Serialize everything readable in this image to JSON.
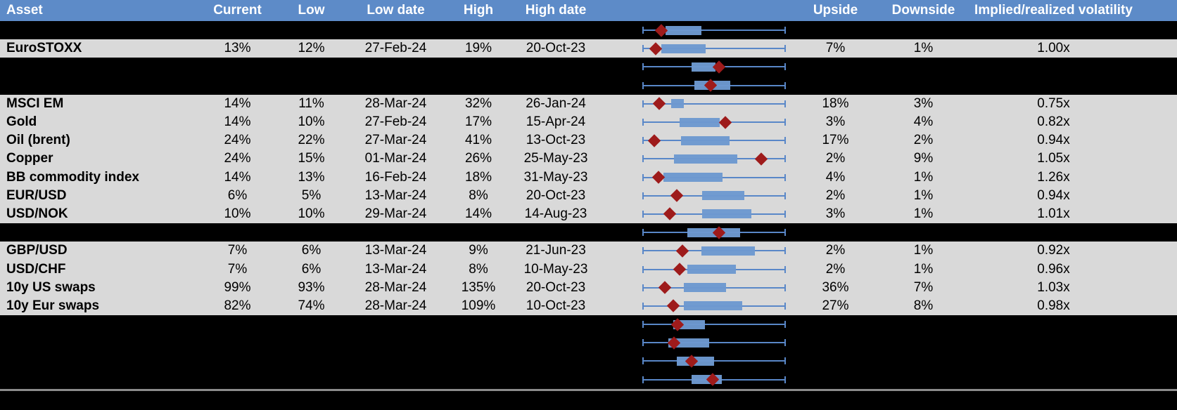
{
  "table": {
    "columns": [
      "Asset",
      "Current",
      "Low",
      "Low date",
      "High",
      "High date",
      "",
      "Upside",
      "Downside",
      "Implied/realized volatility"
    ],
    "rows": [
      {
        "hidden": true,
        "asset": "",
        "current": "",
        "low": "",
        "low_date": "",
        "high": "",
        "high_date": "",
        "upside": "",
        "downside": "",
        "vol": "",
        "plot": {
          "box_start": 16.2,
          "box_end": 41.2,
          "marker": 13.2
        }
      },
      {
        "hidden": false,
        "asset": "EuroSTOXX",
        "current": "13%",
        "low": "12%",
        "low_date": "27-Feb-24",
        "high": "19%",
        "high_date": "20-Oct-23",
        "upside": "7%",
        "downside": "1%",
        "vol": "1.00x",
        "plot": {
          "box_start": 13.2,
          "box_end": 44.1,
          "marker": 9.3
        }
      },
      {
        "hidden": true,
        "asset": "",
        "current": "",
        "low": "",
        "low_date": "",
        "high": "",
        "high_date": "",
        "upside": "",
        "downside": "",
        "vol": "",
        "plot": {
          "box_start": 34.3,
          "box_end": 51.0,
          "marker": 53.4
        }
      },
      {
        "hidden": true,
        "asset": "",
        "current": "",
        "low": "",
        "low_date": "",
        "high": "",
        "high_date": "",
        "upside": "",
        "downside": "",
        "vol": "",
        "plot": {
          "box_start": 36.3,
          "box_end": 61.3,
          "marker": 47.5
        }
      },
      {
        "hidden": false,
        "asset": "MSCI EM",
        "current": "14%",
        "low": "11%",
        "low_date": "28-Mar-24",
        "high": "32%",
        "high_date": "26-Jan-24",
        "upside": "18%",
        "downside": "3%",
        "vol": "0.75x",
        "plot": {
          "box_start": 20.1,
          "box_end": 28.9,
          "marker": 11.8
        }
      },
      {
        "hidden": false,
        "asset": "Gold",
        "current": "14%",
        "low": "10%",
        "low_date": "27-Feb-24",
        "high": "17%",
        "high_date": "15-Apr-24",
        "upside": "3%",
        "downside": "4%",
        "vol": "0.82x",
        "plot": {
          "box_start": 26.0,
          "box_end": 53.9,
          "marker": 57.8
        }
      },
      {
        "hidden": false,
        "asset": "Oil (brent)",
        "current": "24%",
        "low": "22%",
        "low_date": "27-Mar-24",
        "high": "41%",
        "high_date": "13-Oct-23",
        "upside": "17%",
        "downside": "2%",
        "vol": "0.94x",
        "plot": {
          "box_start": 27.0,
          "box_end": 60.8,
          "marker": 8.3
        }
      },
      {
        "hidden": false,
        "asset": "Copper",
        "current": "24%",
        "low": "15%",
        "low_date": "01-Mar-24",
        "high": "26%",
        "high_date": "25-May-23",
        "upside": "2%",
        "downside": "9%",
        "vol": "1.05x",
        "plot": {
          "box_start": 22.1,
          "box_end": 66.2,
          "marker": 82.8
        }
      },
      {
        "hidden": false,
        "asset": "BB commodity index",
        "current": "14%",
        "low": "13%",
        "low_date": "16-Feb-24",
        "high": "18%",
        "high_date": "31-May-23",
        "upside": "4%",
        "downside": "1%",
        "vol": "1.26x",
        "plot": {
          "box_start": 14.7,
          "box_end": 55.9,
          "marker": 11.3
        }
      },
      {
        "hidden": false,
        "asset": "EUR/USD",
        "current": "6%",
        "low": "5%",
        "low_date": "13-Mar-24",
        "high": "8%",
        "high_date": "20-Oct-23",
        "upside": "2%",
        "downside": "1%",
        "vol": "0.94x",
        "plot": {
          "box_start": 41.7,
          "box_end": 71.1,
          "marker": 24.0
        }
      },
      {
        "hidden": false,
        "asset": "USD/NOK",
        "current": "10%",
        "low": "10%",
        "low_date": "29-Mar-24",
        "high": "14%",
        "high_date": "14-Aug-23",
        "upside": "3%",
        "downside": "1%",
        "vol": "1.01x",
        "plot": {
          "box_start": 41.7,
          "box_end": 76.0,
          "marker": 19.1
        }
      },
      {
        "hidden": true,
        "asset": "",
        "current": "",
        "low": "",
        "low_date": "",
        "high": "",
        "high_date": "",
        "upside": "",
        "downside": "",
        "vol": "",
        "plot": {
          "box_start": 31.4,
          "box_end": 68.1,
          "marker": 53.4
        }
      },
      {
        "hidden": false,
        "asset": "GBP/USD",
        "current": "7%",
        "low": "6%",
        "low_date": "13-Mar-24",
        "high": "9%",
        "high_date": "21-Jun-23",
        "upside": "2%",
        "downside": "1%",
        "vol": "0.92x",
        "plot": {
          "box_start": 41.2,
          "box_end": 78.4,
          "marker": 27.9
        }
      },
      {
        "hidden": false,
        "asset": "USD/CHF",
        "current": "7%",
        "low": "6%",
        "low_date": "13-Mar-24",
        "high": "8%",
        "high_date": "10-May-23",
        "upside": "2%",
        "downside": "1%",
        "vol": "0.96x",
        "plot": {
          "box_start": 31.4,
          "box_end": 65.2,
          "marker": 26.0
        }
      },
      {
        "hidden": false,
        "asset": "10y US swaps",
        "current": "99%",
        "low": "93%",
        "low_date": "28-Mar-24",
        "high": "135%",
        "high_date": "20-Oct-23",
        "upside": "36%",
        "downside": "7%",
        "vol": "1.03x",
        "plot": {
          "box_start": 28.9,
          "box_end": 58.3,
          "marker": 15.7
        }
      },
      {
        "hidden": false,
        "asset": "10y Eur swaps",
        "current": "82%",
        "low": "74%",
        "low_date": "28-Mar-24",
        "high": "109%",
        "high_date": "10-Oct-23",
        "upside": "27%",
        "downside": "8%",
        "vol": "0.98x",
        "plot": {
          "box_start": 28.9,
          "box_end": 69.6,
          "marker": 21.6
        }
      },
      {
        "hidden": true,
        "asset": "",
        "current": "",
        "low": "",
        "low_date": "",
        "high": "",
        "high_date": "",
        "upside": "",
        "downside": "",
        "vol": "",
        "plot": {
          "box_start": 21.6,
          "box_end": 43.6,
          "marker": 24.5
        }
      },
      {
        "hidden": true,
        "asset": "",
        "current": "",
        "low": "",
        "low_date": "",
        "high": "",
        "high_date": "",
        "upside": "",
        "downside": "",
        "vol": "",
        "plot": {
          "box_start": 18.1,
          "box_end": 46.6,
          "marker": 22.1
        }
      },
      {
        "hidden": true,
        "asset": "",
        "current": "",
        "low": "",
        "low_date": "",
        "high": "",
        "high_date": "",
        "upside": "",
        "downside": "",
        "vol": "",
        "plot": {
          "box_start": 24.0,
          "box_end": 50.0,
          "marker": 34.3
        }
      },
      {
        "hidden": true,
        "asset": "",
        "current": "",
        "low": "",
        "low_date": "",
        "high": "",
        "high_date": "",
        "upside": "",
        "downside": "",
        "vol": "",
        "plot": {
          "box_start": 34.3,
          "box_end": 55.4,
          "marker": 49.0
        }
      }
    ]
  },
  "colors": {
    "header_bg": "#5d8bc8",
    "header_text": "#ffffff",
    "data_row_bg": "#d9d9d9",
    "hidden_row_bg": "#000000",
    "whisker_blue": "#5987c8",
    "box_blue": "#6d99cf",
    "marker_red": "#9e1b1b",
    "divider_gray": "#8c8c8c"
  }
}
